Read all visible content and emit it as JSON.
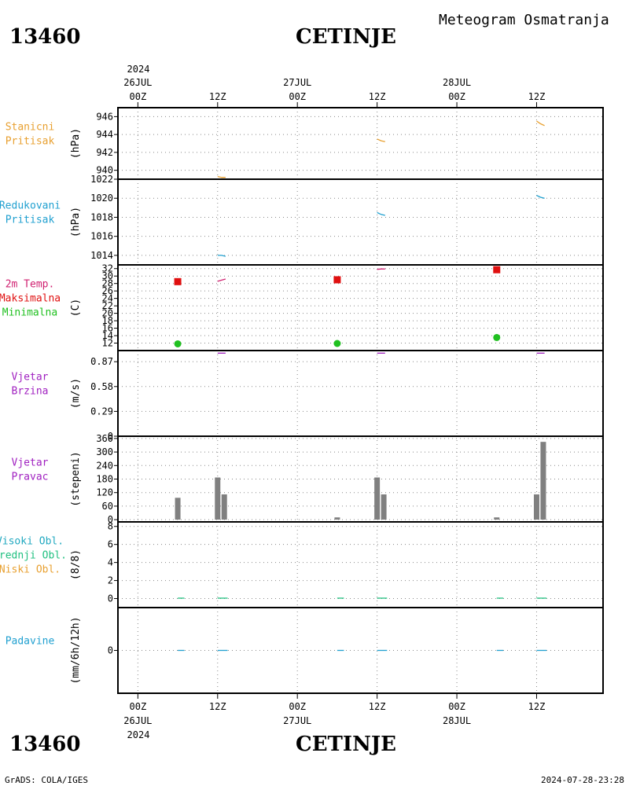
{
  "header": {
    "station_id": "13460",
    "station_name": "CETINJE",
    "subtitle": "Meteogram Osmatranja"
  },
  "footer": {
    "credit": "GrADS: COLA/IGES",
    "timestamp": "2024-07-28-23:28"
  },
  "time_axis": {
    "year": "2024",
    "ticks": [
      {
        "hours": 0,
        "label": "00Z",
        "date": "26JUL"
      },
      {
        "hours": 12,
        "label": "12Z",
        "date": ""
      },
      {
        "hours": 24,
        "label": "00Z",
        "date": "27JUL"
      },
      {
        "hours": 36,
        "label": "12Z",
        "date": ""
      },
      {
        "hours": 48,
        "label": "00Z",
        "date": "28JUL"
      },
      {
        "hours": 60,
        "label": "12Z",
        "date": ""
      }
    ],
    "range_hours": [
      -3,
      70
    ]
  },
  "colors": {
    "stanicni": "#e8a030",
    "redukovani": "#20a0d0",
    "temp_label": "#d02070",
    "max": "#e01010",
    "min": "#20c020",
    "wind": "#a020c0",
    "bar": "#808080",
    "visoki": "#20a8c0",
    "srednji": "#20c080",
    "niski": "#e8a030",
    "padavine": "#20a0d0"
  },
  "chart_data": [
    {
      "type": "line",
      "id": "stanicni",
      "labels": [
        "Stanicni",
        "Pritisak"
      ],
      "ylabel": "(hPa)",
      "ylim": [
        939,
        947
      ],
      "yticks": [
        940,
        942,
        944,
        946
      ],
      "series": [
        {
          "values": [
            [
              12.0,
              939.3
            ],
            [
              12.6,
              939.2
            ],
            [
              13.2,
              939.2
            ]
          ]
        },
        {
          "values": [
            [
              36.0,
              943.5
            ],
            [
              36.6,
              943.3
            ],
            [
              37.2,
              943.2
            ]
          ]
        },
        {
          "values": [
            [
              60.0,
              945.5
            ],
            [
              60.6,
              945.2
            ],
            [
              61.2,
              945.0
            ]
          ]
        }
      ]
    },
    {
      "type": "line",
      "id": "redukovani",
      "labels": [
        "Redukovani",
        "Pritisak"
      ],
      "ylabel": "(hPa)",
      "ylim": [
        1013,
        1022
      ],
      "yticks": [
        1014,
        1016,
        1018,
        1020,
        1022
      ],
      "series": [
        {
          "values": [
            [
              12.0,
              1014.0
            ],
            [
              12.6,
              1014.0
            ],
            [
              13.2,
              1013.9
            ]
          ]
        },
        {
          "values": [
            [
              36.0,
              1018.5
            ],
            [
              36.6,
              1018.3
            ],
            [
              37.2,
              1018.2
            ]
          ]
        },
        {
          "values": [
            [
              60.0,
              1020.3
            ],
            [
              60.6,
              1020.1
            ],
            [
              61.2,
              1020.0
            ]
          ]
        }
      ]
    },
    {
      "type": "scatter",
      "id": "temp",
      "labels": [
        "2m Temp.",
        "Maksimalna",
        "Minimalna"
      ],
      "ylabel": "(C)",
      "ylim": [
        10,
        33
      ],
      "yticks": [
        12,
        14,
        16,
        18,
        20,
        22,
        24,
        26,
        28,
        30,
        32
      ],
      "temp_line": [
        {
          "values": [
            [
              12.0,
              28.6
            ],
            [
              12.6,
              28.9
            ],
            [
              13.2,
              29.2
            ]
          ]
        },
        {
          "values": [
            [
              36.0,
              31.8
            ],
            [
              36.6,
              31.9
            ],
            [
              37.2,
              31.9
            ]
          ]
        }
      ],
      "max_points": [
        [
          6,
          28.5
        ],
        [
          30,
          29.0
        ],
        [
          54,
          31.7
        ]
      ],
      "min_points": [
        [
          6,
          11.8
        ],
        [
          30,
          11.9
        ],
        [
          54,
          13.5
        ]
      ]
    },
    {
      "type": "line",
      "id": "brzina",
      "labels": [
        "Vjetar",
        "Brzina"
      ],
      "ylabel": "(m/s)",
      "ylim": [
        0,
        1.0
      ],
      "yticks": [
        0,
        0.29,
        0.58,
        0.87
      ],
      "ytick_labels": [
        "0",
        "0.29",
        "0.58",
        "0.87"
      ],
      "series": [
        {
          "values": [
            [
              12.0,
              0.97
            ],
            [
              13.2,
              0.97
            ]
          ]
        },
        {
          "values": [
            [
              36.0,
              0.97
            ],
            [
              37.2,
              0.97
            ]
          ]
        },
        {
          "values": [
            [
              60.0,
              0.97
            ],
            [
              61.2,
              0.97
            ]
          ]
        }
      ]
    },
    {
      "type": "bar",
      "id": "pravac",
      "labels": [
        "Vjetar",
        "Pravac"
      ],
      "ylabel": "(stepeni)",
      "ylim": [
        -10,
        370
      ],
      "yticks": [
        0,
        60,
        120,
        180,
        240,
        300,
        360
      ],
      "bars": [
        {
          "x": 6,
          "value": 97
        },
        {
          "x": 12,
          "value": 187
        },
        {
          "x": 13,
          "value": 112
        },
        {
          "x": 30,
          "value": 10
        },
        {
          "x": 36,
          "value": 187
        },
        {
          "x": 37,
          "value": 112
        },
        {
          "x": 54,
          "value": 10
        },
        {
          "x": 60,
          "value": 112
        },
        {
          "x": 61,
          "value": 345
        }
      ]
    },
    {
      "type": "line",
      "id": "oblaci",
      "labels": [
        "Visoki Obl.",
        "Srednji Obl.",
        "Niski Obl."
      ],
      "ylabel": "(8/8)",
      "ylim": [
        -1,
        8.5
      ],
      "yticks": [
        0,
        2,
        4,
        6,
        8
      ],
      "series": [
        {
          "values": [
            [
              6.0,
              0.05
            ],
            [
              7.0,
              0.05
            ]
          ]
        },
        {
          "values": [
            [
              12.0,
              0.05
            ],
            [
              13.5,
              0.05
            ]
          ]
        },
        {
          "values": [
            [
              30.0,
              0.05
            ],
            [
              31.0,
              0.05
            ]
          ]
        },
        {
          "values": [
            [
              36.0,
              0.05
            ],
            [
              37.5,
              0.05
            ]
          ]
        },
        {
          "values": [
            [
              54.0,
              0.05
            ],
            [
              55.0,
              0.05
            ]
          ]
        },
        {
          "values": [
            [
              60.0,
              0.05
            ],
            [
              61.5,
              0.05
            ]
          ]
        }
      ]
    },
    {
      "type": "line",
      "id": "padavine",
      "labels": [
        "Padavine"
      ],
      "ylabel": "(mm/6h/12h)",
      "ylim": [
        -1,
        1
      ],
      "yticks": [
        0
      ],
      "series": [
        {
          "values": [
            [
              6.0,
              0.0
            ],
            [
              7.0,
              0.0
            ]
          ]
        },
        {
          "values": [
            [
              12.0,
              0.0
            ],
            [
              13.5,
              0.0
            ]
          ]
        },
        {
          "values": [
            [
              30.0,
              0.0
            ],
            [
              31.0,
              0.0
            ]
          ]
        },
        {
          "values": [
            [
              36.0,
              0.0
            ],
            [
              37.5,
              0.0
            ]
          ]
        },
        {
          "values": [
            [
              54.0,
              0.0
            ],
            [
              55.0,
              0.0
            ]
          ]
        },
        {
          "values": [
            [
              60.0,
              0.0
            ],
            [
              61.5,
              0.0
            ]
          ]
        }
      ]
    }
  ]
}
